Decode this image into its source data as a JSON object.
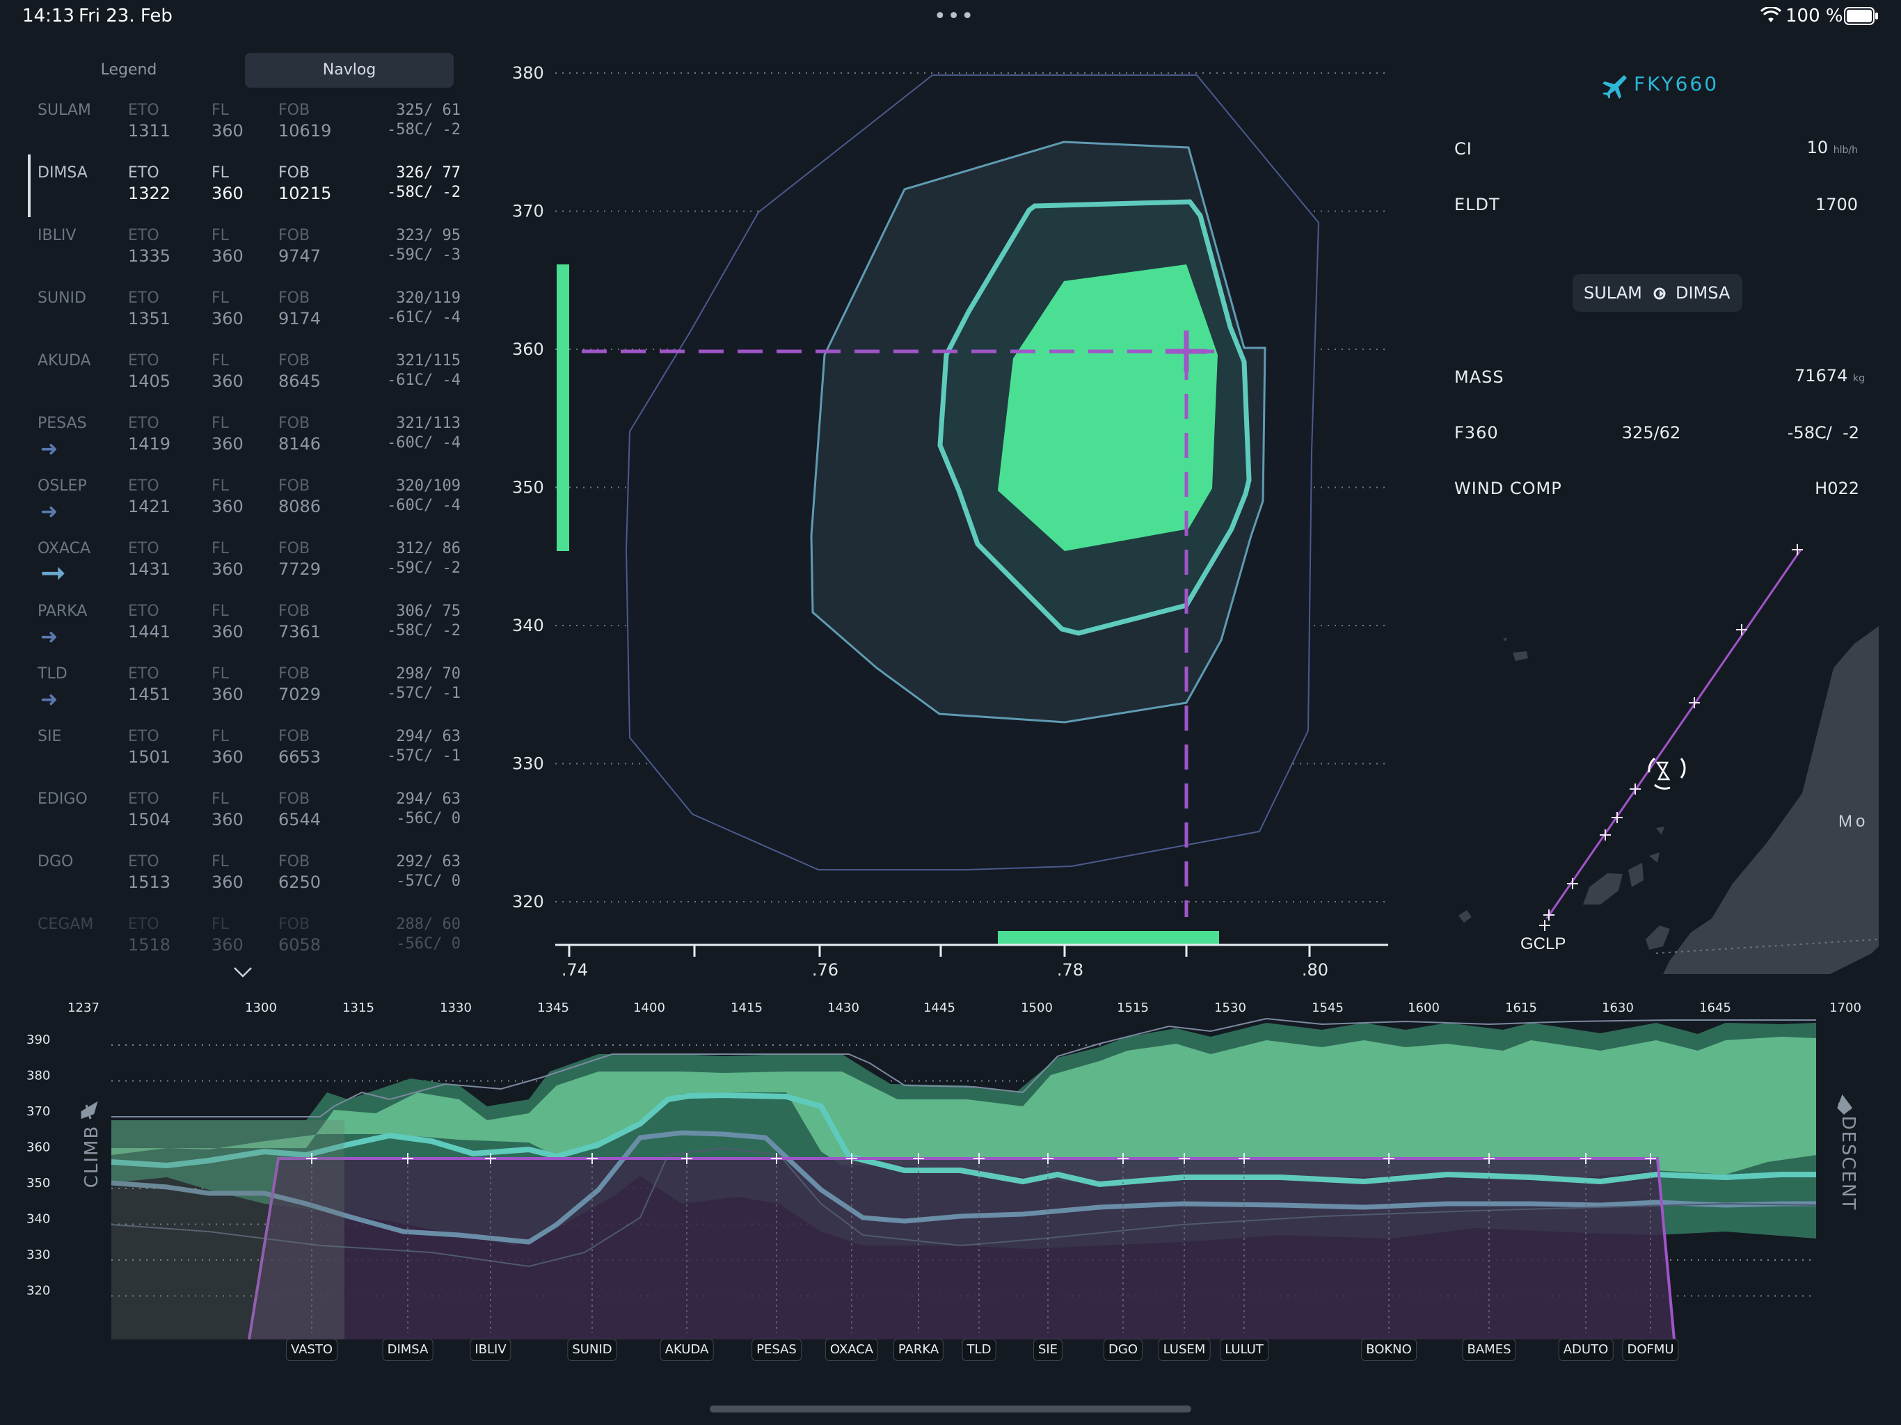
{
  "status": {
    "time": "14:13",
    "date": "Fri 23. Feb",
    "battery": "100 %"
  },
  "tabs": [
    {
      "label": "Legend"
    },
    {
      "label": "Navlog",
      "active": true
    }
  ],
  "navlog_headers": {
    "eto": "ETO",
    "fl": "FL",
    "fob": "FOB"
  },
  "navlog": [
    {
      "name": "SULAM",
      "eto": "1311",
      "fl": "360",
      "fob": "10619",
      "wind": "325/ 61",
      "temp": "-58C/ -2"
    },
    {
      "name": "DIMSA",
      "eto": "1322",
      "fl": "360",
      "fob": "10215",
      "wind": "326/ 77",
      "temp": "-58C/ -2",
      "current": true
    },
    {
      "name": "IBLIV",
      "eto": "1335",
      "fl": "360",
      "fob": "9747",
      "wind": "323/ 95",
      "temp": "-59C/ -3"
    },
    {
      "name": "SUNID",
      "eto": "1351",
      "fl": "360",
      "fob": "9174",
      "wind": "320/119",
      "temp": "-61C/ -4"
    },
    {
      "name": "AKUDA",
      "eto": "1405",
      "fl": "360",
      "fob": "8645",
      "wind": "321/115",
      "temp": "-61C/ -4"
    },
    {
      "name": "PESAS",
      "eto": "1419",
      "fl": "360",
      "fob": "8146",
      "wind": "321/113",
      "temp": "-60C/ -4",
      "arrow": "small"
    },
    {
      "name": "OSLEP",
      "eto": "1421",
      "fl": "360",
      "fob": "8086",
      "wind": "320/109",
      "temp": "-60C/ -4",
      "arrow": "small"
    },
    {
      "name": "OXACA",
      "eto": "1431",
      "fl": "360",
      "fob": "7729",
      "wind": "312/ 86",
      "temp": "-59C/ -2",
      "arrow": "big"
    },
    {
      "name": "PARKA",
      "eto": "1441",
      "fl": "360",
      "fob": "7361",
      "wind": "306/ 75",
      "temp": "-58C/ -2",
      "arrow": "small"
    },
    {
      "name": "TLD",
      "eto": "1451",
      "fl": "360",
      "fob": "7029",
      "wind": "298/ 70",
      "temp": "-57C/ -1",
      "arrow": "small"
    },
    {
      "name": "SIE",
      "eto": "1501",
      "fl": "360",
      "fob": "6653",
      "wind": "294/ 63",
      "temp": "-57C/ -1"
    },
    {
      "name": "EDIGO",
      "eto": "1504",
      "fl": "360",
      "fob": "6544",
      "wind": "294/ 63",
      "temp": "-56C/ 0"
    },
    {
      "name": "DGO",
      "eto": "1513",
      "fl": "360",
      "fob": "6250",
      "wind": "292/ 63",
      "temp": "-57C/ 0"
    },
    {
      "name": "CEGAM",
      "eto": "1518",
      "fl": "360",
      "fob": "6058",
      "wind": "288/ 60",
      "temp": "-56C/ 0",
      "fade": true
    }
  ],
  "flight": {
    "callsign": "FKY660"
  },
  "info": {
    "ci_label": "CI",
    "ci_value": "10",
    "ci_unit": "hlb/h",
    "eldt_label": "ELDT",
    "eldt_value": "1700",
    "seg_from": "SULAM",
    "seg_to": "DIMSA",
    "mass_label": "MASS",
    "mass_value": "71674",
    "mass_unit": "kg",
    "fl_label": "F360",
    "fl_wind": "325/62",
    "fl_temp": "-58C/  -2",
    "windcomp_label": "WIND COMP",
    "windcomp_value": "H022"
  },
  "map": {
    "airport": "GCLP",
    "land_label": "Mo"
  },
  "envelope_chart": {
    "type": "contour",
    "y_ticks": [
      "380",
      "370",
      "360",
      "350",
      "340",
      "330",
      "320"
    ],
    "x_ticks": [
      ".74",
      ".76",
      ".78",
      ".80"
    ],
    "ylim": [
      320,
      380
    ],
    "xlim": [
      0.74,
      0.8
    ],
    "selected": {
      "mach": 0.79,
      "fl": 360
    }
  },
  "profile_chart": {
    "time_ticks": [
      "1237",
      "1300",
      "1315",
      "1330",
      "1345",
      "1400",
      "1415",
      "1430",
      "1445",
      "1500",
      "1515",
      "1530",
      "1545",
      "1600",
      "1615",
      "1630",
      "1645",
      "1700"
    ],
    "fl_ticks": [
      "390",
      "380",
      "370",
      "360",
      "350",
      "340",
      "330",
      "320"
    ],
    "climb_label": "CLIMB",
    "descent_label": "DESCENT",
    "cruise_fl": 360,
    "waypoints": [
      "VASTO",
      "DIMSA",
      "IBLIV",
      "SUNID",
      "AKUDA",
      "PESAS",
      "OXACA",
      "PARKA",
      "TLD",
      "SIE",
      "DGO",
      "LUSEM",
      "LULUT",
      "BOKNO",
      "BAMES",
      "ADUTO",
      "DOFMU"
    ]
  },
  "colors": {
    "accent": "#2fb8d6",
    "green": "#4ade90",
    "purple": "#a055c8",
    "teal": "#5fc9be"
  }
}
